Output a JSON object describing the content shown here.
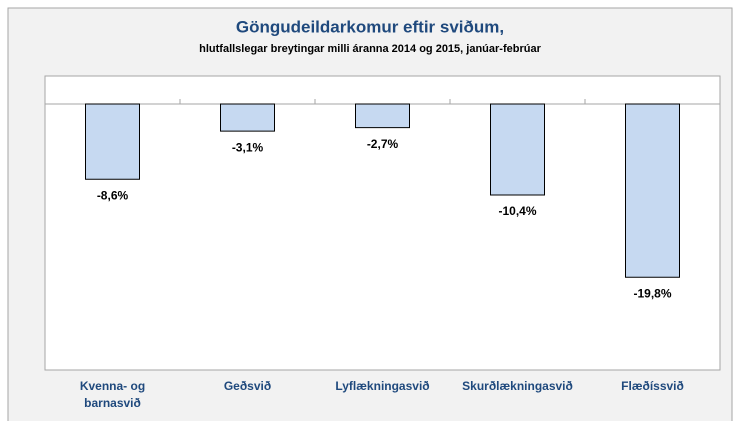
{
  "chart_data": {
    "type": "bar",
    "title": "Göngudeildarkomur eftir sviðum,",
    "subtitle": "hlutfallslegar breytingar milli áranna 2014 og 2015, janúar-febrúar",
    "categories": [
      "Kvenna- og barnasvið",
      "Geðsvið",
      "Lyflækningasvið",
      "Skurðlækningasvið",
      "Flæðíssvið"
    ],
    "values": [
      -8.6,
      -3.1,
      -2.7,
      -10.4,
      -19.8
    ],
    "value_labels": [
      "-8,6%",
      "-3,1%",
      "-2,7%",
      "-10,4%",
      "-19,8%"
    ],
    "color": "#c6d9f1",
    "ylim": [
      -30.4,
      3.2
    ]
  }
}
